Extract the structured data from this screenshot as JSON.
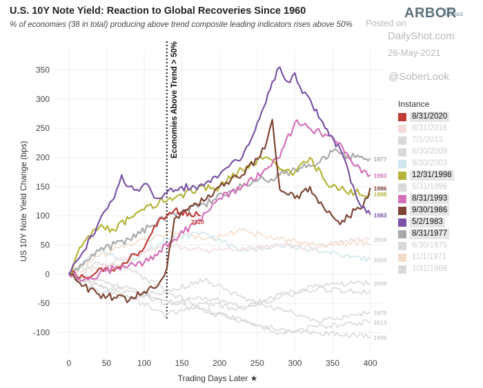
{
  "title": "U.S. 10Y Note Yield: Reaction to Global Recoveries Since 1960",
  "subtitle": "% of economies (38 in total) producing above trend composite leading indicators rises above 50%",
  "brand": {
    "name": "ARBOR",
    "tagline_1": "DATA",
    "tagline_2": "SCIENCE"
  },
  "watermark": {
    "posted": "Posted on",
    "site": "DailyShot.com",
    "date": "26-May-2021",
    "handle": "@SoberLook"
  },
  "legend_title": "Instance",
  "chart_data": {
    "type": "line",
    "xlabel": "Trading Days Later",
    "ylabel": "US 10Y Note Yield Change (bps)",
    "xlim": [
      -20,
      415
    ],
    "ylim": [
      -135,
      385
    ],
    "xticks": [
      0,
      50,
      100,
      150,
      200,
      250,
      300,
      350,
      400
    ],
    "yticks": [
      -100,
      -50,
      0,
      50,
      100,
      150,
      200,
      250,
      300,
      350
    ],
    "grid": true,
    "vline": {
      "x": 130,
      "label": "Economies Above Trend > 50%"
    },
    "series": [
      {
        "name": "1/31/1968",
        "highlight": false,
        "color": "#d9d9d9",
        "end_label": "",
        "x": [
          0,
          40,
          80,
          130,
          180,
          230,
          280,
          330,
          380,
          400
        ],
        "y": [
          0,
          -20,
          -30,
          -50,
          -40,
          -55,
          -35,
          -25,
          -30,
          -28
        ]
      },
      {
        "name": "11/1/1971",
        "highlight": false,
        "color": "#f3dccb",
        "end_label": "",
        "x": [
          0,
          40,
          80,
          130,
          180,
          230,
          280,
          330,
          380,
          400
        ],
        "y": [
          0,
          30,
          50,
          70,
          60,
          75,
          60,
          50,
          55,
          52
        ]
      },
      {
        "name": "6/30/1975",
        "highlight": false,
        "color": "#d9d9d9",
        "end_label": "1975",
        "x": [
          0,
          40,
          80,
          130,
          180,
          230,
          280,
          330,
          380,
          400
        ],
        "y": [
          0,
          20,
          10,
          -30,
          -10,
          -40,
          -60,
          -80,
          -70,
          -65
        ]
      },
      {
        "name": "6/30/2009",
        "highlight": false,
        "color": "#d9d9d9",
        "end_label": "2009",
        "x": [
          0,
          40,
          80,
          130,
          180,
          230,
          280,
          330,
          380,
          400
        ],
        "y": [
          0,
          -30,
          -40,
          -70,
          -50,
          -60,
          -40,
          -20,
          -15,
          -15
        ]
      },
      {
        "name": "9/30/2003",
        "highlight": false,
        "color": "#cfe6ec",
        "end_label": "2003",
        "x": [
          0,
          40,
          80,
          130,
          180,
          230,
          280,
          330,
          380,
          400
        ],
        "y": [
          0,
          40,
          20,
          60,
          70,
          40,
          50,
          40,
          30,
          25
        ]
      },
      {
        "name": "7/1/2013",
        "highlight": false,
        "color": "#d9d9d9",
        "end_label": "2013",
        "x": [
          0,
          40,
          80,
          130,
          180,
          230,
          280,
          330,
          380,
          400
        ],
        "y": [
          0,
          -20,
          -40,
          -30,
          -60,
          -80,
          -100,
          -90,
          -85,
          -82
        ]
      },
      {
        "name": "8/31/2016",
        "highlight": false,
        "color": "#f4dcdc",
        "end_label": "2016",
        "x": [
          0,
          40,
          80,
          130,
          180,
          230,
          280,
          330,
          380,
          400
        ],
        "y": [
          0,
          10,
          30,
          50,
          40,
          45,
          50,
          45,
          60,
          60
        ]
      },
      {
        "name": "5/31/1996",
        "highlight": false,
        "color": "#d9d9d9",
        "end_label": "1996",
        "x": [
          0,
          40,
          80,
          130,
          180,
          230,
          280,
          330,
          380,
          400
        ],
        "y": [
          0,
          -10,
          -25,
          -45,
          -65,
          -80,
          -95,
          -100,
          -105,
          -108
        ]
      },
      {
        "name": "8/31/1977",
        "highlight": true,
        "color": "#a9a9a9",
        "end_label": "1977",
        "x": [
          0,
          40,
          80,
          130,
          180,
          230,
          280,
          330,
          350,
          380,
          400
        ],
        "y": [
          0,
          40,
          60,
          100,
          120,
          150,
          170,
          190,
          210,
          200,
          198
        ]
      },
      {
        "name": "8/31/2020",
        "highlight": true,
        "color": "#c23b36",
        "end_label": "2020",
        "x": [
          0,
          20,
          40,
          60,
          80,
          100,
          110,
          120,
          130,
          140,
          160,
          175
        ],
        "y": [
          0,
          -5,
          10,
          5,
          25,
          45,
          70,
          95,
          100,
          110,
          105,
          100
        ]
      },
      {
        "name": "12/31/1998",
        "highlight": true,
        "color": "#b6b438",
        "end_label": "1998",
        "x": [
          0,
          20,
          40,
          60,
          80,
          100,
          120,
          140,
          170,
          200,
          230,
          260,
          280,
          300,
          320,
          340,
          360,
          380,
          400
        ],
        "y": [
          0,
          55,
          80,
          75,
          95,
          110,
          125,
          130,
          145,
          150,
          180,
          200,
          180,
          175,
          200,
          160,
          145,
          140,
          138
        ]
      },
      {
        "name": "8/31/1993",
        "highlight": true,
        "color": "#d470b8",
        "end_label": "1993",
        "x": [
          0,
          20,
          40,
          60,
          80,
          100,
          120,
          140,
          170,
          200,
          230,
          260,
          280,
          300,
          320,
          340,
          360,
          380,
          400
        ],
        "y": [
          0,
          -10,
          0,
          10,
          15,
          20,
          40,
          60,
          90,
          130,
          150,
          180,
          200,
          260,
          250,
          240,
          225,
          185,
          170
        ]
      },
      {
        "name": "9/30/1986",
        "highlight": true,
        "color": "#7d4433",
        "end_label": "1986",
        "x": [
          0,
          20,
          40,
          60,
          80,
          100,
          120,
          130,
          140,
          170,
          200,
          230,
          260,
          270,
          280,
          300,
          320,
          340,
          360,
          380,
          390,
          400
        ],
        "y": [
          0,
          -20,
          -35,
          -40,
          -45,
          -30,
          -15,
          10,
          95,
          120,
          150,
          170,
          215,
          265,
          145,
          130,
          150,
          110,
          85,
          110,
          115,
          148
        ]
      },
      {
        "name": "5/2/1983",
        "highlight": true,
        "color": "#7a53a6",
        "end_label": "1983",
        "x": [
          0,
          20,
          40,
          60,
          70,
          80,
          90,
          100,
          110,
          120,
          130,
          150,
          170,
          200,
          230,
          250,
          270,
          280,
          290,
          300,
          310,
          320,
          340,
          360,
          380,
          395,
          400
        ],
        "y": [
          0,
          40,
          90,
          130,
          170,
          150,
          145,
          155,
          140,
          130,
          140,
          150,
          145,
          170,
          200,
          260,
          330,
          355,
          330,
          345,
          310,
          300,
          250,
          215,
          140,
          105,
          102
        ]
      }
    ]
  }
}
